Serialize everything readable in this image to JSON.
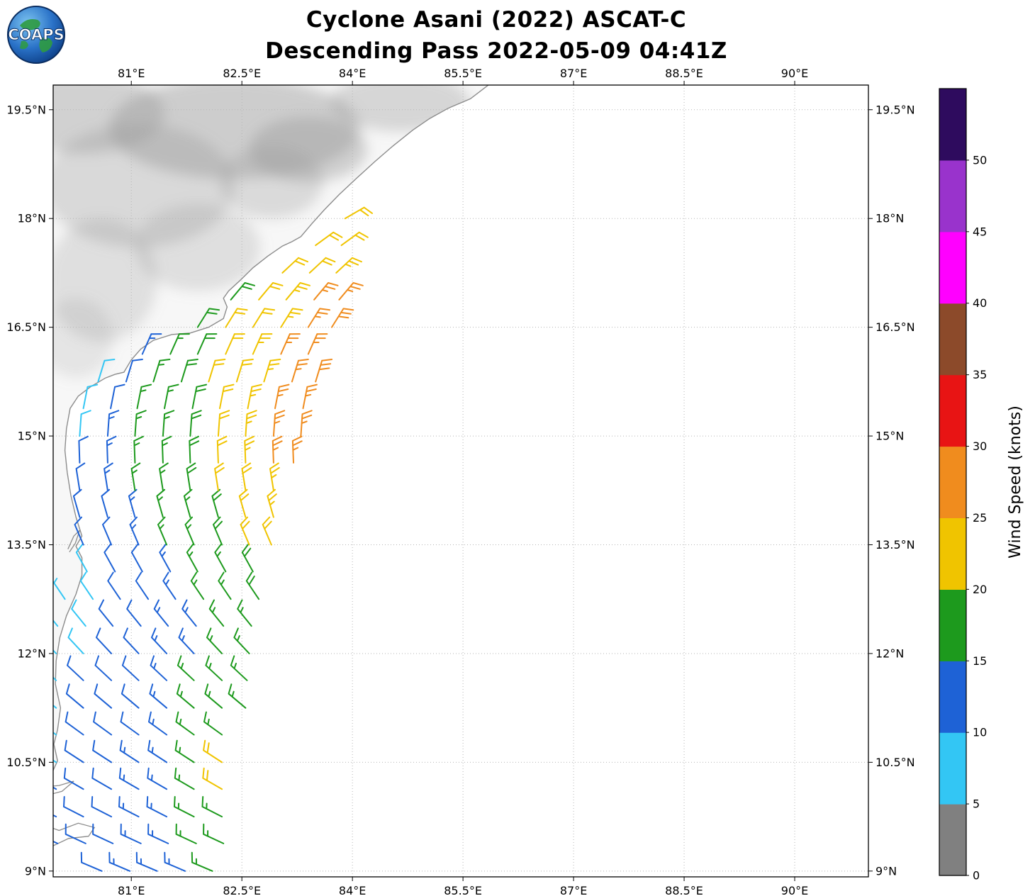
{
  "logo": {
    "text": "COAPS"
  },
  "chart_data": {
    "type": "scatter",
    "subtype": "wind_barb_map",
    "title": "Cyclone Asani (2022) ASCAT-C",
    "subtitle": "Descending Pass 2022-05-09 04:41Z",
    "grid": true,
    "projection": {
      "lon_min": 79.94,
      "lon_max": 91.0,
      "lat_min": 8.92,
      "lat_max": 19.84
    },
    "x_ticks": [
      {
        "v": 81.0,
        "label": "81°E"
      },
      {
        "v": 82.5,
        "label": "82.5°E"
      },
      {
        "v": 84.0,
        "label": "84°E"
      },
      {
        "v": 85.5,
        "label": "85.5°E"
      },
      {
        "v": 87.0,
        "label": "87°E"
      },
      {
        "v": 88.5,
        "label": "88.5°E"
      },
      {
        "v": 90.0,
        "label": "90°E"
      }
    ],
    "y_ticks": [
      {
        "v": 9.0,
        "label": "9°N"
      },
      {
        "v": 10.5,
        "label": "10.5°N"
      },
      {
        "v": 12.0,
        "label": "12°N"
      },
      {
        "v": 13.5,
        "label": "13.5°N"
      },
      {
        "v": 15.0,
        "label": "15°N"
      },
      {
        "v": 16.5,
        "label": "16.5°N"
      },
      {
        "v": 18.0,
        "label": "18°N"
      },
      {
        "v": 19.5,
        "label": "19.5°N"
      }
    ],
    "colorbar": {
      "label": "Wind Speed (knots)",
      "bin_size_knots": 5,
      "range": [
        0,
        55
      ],
      "tick_labels": [
        "0",
        "5",
        "10",
        "15",
        "20",
        "25",
        "30",
        "35",
        "40",
        "45",
        "50"
      ],
      "colors": [
        "#808080",
        "#33c6f4",
        "#1e62d6",
        "#1d9a1d",
        "#f0c400",
        "#f08c1e",
        "#e81414",
        "#8c4a2a",
        "#ff00ff",
        "#9933cc",
        "#2e0b5e"
      ]
    },
    "barb_format": [
      "lon_deg_e",
      "lat_deg_n",
      "wind_speed_knots",
      "wind_from_deg"
    ],
    "barbs": [
      [
        80.6,
        9.0,
        12,
        293
      ],
      [
        80.98,
        9.0,
        13,
        293
      ],
      [
        81.35,
        9.0,
        13,
        293
      ],
      [
        81.73,
        9.0,
        14,
        293
      ],
      [
        82.1,
        9.0,
        15,
        293
      ],
      [
        80.0,
        9.38,
        10,
        295
      ],
      [
        80.38,
        9.38,
        11,
        295
      ],
      [
        80.75,
        9.38,
        12,
        295
      ],
      [
        81.13,
        9.38,
        13,
        295
      ],
      [
        81.5,
        9.38,
        14,
        295
      ],
      [
        81.88,
        9.38,
        15,
        295
      ],
      [
        82.25,
        9.38,
        16,
        295
      ],
      [
        79.98,
        9.75,
        10,
        297
      ],
      [
        80.35,
        9.75,
        11,
        297
      ],
      [
        80.73,
        9.75,
        12,
        297
      ],
      [
        81.1,
        9.75,
        13,
        297
      ],
      [
        81.48,
        9.75,
        14,
        297
      ],
      [
        81.85,
        9.75,
        15,
        297
      ],
      [
        82.23,
        9.75,
        16,
        297
      ],
      [
        79.98,
        10.13,
        10,
        300
      ],
      [
        80.35,
        10.13,
        11,
        300
      ],
      [
        80.73,
        10.13,
        12,
        300
      ],
      [
        81.1,
        10.13,
        13,
        300
      ],
      [
        81.48,
        10.13,
        14,
        300
      ],
      [
        81.85,
        10.13,
        15,
        300
      ],
      [
        82.23,
        10.13,
        21,
        300
      ],
      [
        79.98,
        10.5,
        9,
        303
      ],
      [
        80.35,
        10.5,
        11,
        303
      ],
      [
        80.73,
        10.5,
        12,
        303
      ],
      [
        81.1,
        10.5,
        13,
        303
      ],
      [
        81.48,
        10.5,
        14,
        303
      ],
      [
        81.85,
        10.5,
        15,
        303
      ],
      [
        82.23,
        10.5,
        20,
        303
      ],
      [
        79.98,
        10.88,
        9,
        306
      ],
      [
        80.35,
        10.88,
        10,
        306
      ],
      [
        80.73,
        10.88,
        11,
        306
      ],
      [
        81.1,
        10.88,
        12,
        306
      ],
      [
        81.48,
        10.88,
        14,
        306
      ],
      [
        81.85,
        10.88,
        15,
        306
      ],
      [
        82.23,
        10.88,
        16,
        306
      ],
      [
        79.98,
        11.25,
        9,
        310
      ],
      [
        80.35,
        11.25,
        10,
        310
      ],
      [
        80.73,
        11.25,
        11,
        310
      ],
      [
        81.1,
        11.25,
        12,
        310
      ],
      [
        81.48,
        11.25,
        14,
        310
      ],
      [
        81.85,
        11.25,
        15,
        310
      ],
      [
        82.23,
        11.25,
        16,
        310
      ],
      [
        82.55,
        11.25,
        17,
        310
      ],
      [
        79.98,
        11.63,
        8,
        313
      ],
      [
        80.35,
        11.63,
        10,
        313
      ],
      [
        80.73,
        11.63,
        11,
        313
      ],
      [
        81.1,
        11.63,
        12,
        313
      ],
      [
        81.48,
        11.63,
        13,
        313
      ],
      [
        81.85,
        11.63,
        15,
        313
      ],
      [
        82.23,
        11.63,
        16,
        313
      ],
      [
        82.57,
        11.63,
        17,
        313
      ],
      [
        79.98,
        12.0,
        8,
        317
      ],
      [
        80.35,
        12.0,
        9,
        317
      ],
      [
        80.73,
        12.0,
        10,
        317
      ],
      [
        81.1,
        12.0,
        12,
        317
      ],
      [
        81.48,
        12.0,
        13,
        317
      ],
      [
        81.85,
        12.0,
        14,
        317
      ],
      [
        82.23,
        12.0,
        16,
        317
      ],
      [
        82.6,
        12.0,
        17,
        317
      ],
      [
        80.0,
        12.38,
        8,
        321
      ],
      [
        80.38,
        12.38,
        9,
        321
      ],
      [
        80.75,
        12.38,
        10,
        321
      ],
      [
        81.13,
        12.38,
        12,
        321
      ],
      [
        81.5,
        12.38,
        13,
        321
      ],
      [
        81.88,
        12.38,
        14,
        321
      ],
      [
        82.25,
        12.38,
        16,
        321
      ],
      [
        82.63,
        12.38,
        17,
        321
      ],
      [
        80.1,
        12.75,
        7,
        326
      ],
      [
        80.48,
        12.75,
        9,
        326
      ],
      [
        80.85,
        12.75,
        10,
        326
      ],
      [
        81.23,
        12.75,
        12,
        326
      ],
      [
        81.6,
        12.75,
        13,
        326
      ],
      [
        81.98,
        12.75,
        15,
        326
      ],
      [
        82.35,
        12.75,
        16,
        326
      ],
      [
        82.73,
        12.75,
        18,
        326
      ],
      [
        80.4,
        13.13,
        9,
        331
      ],
      [
        80.78,
        13.13,
        11,
        331
      ],
      [
        81.15,
        13.13,
        12,
        331
      ],
      [
        81.53,
        13.13,
        14,
        331
      ],
      [
        81.9,
        13.13,
        16,
        331
      ],
      [
        82.28,
        13.13,
        17,
        331
      ],
      [
        82.65,
        13.13,
        19,
        331
      ],
      [
        80.35,
        13.5,
        10,
        337
      ],
      [
        80.73,
        13.5,
        11,
        337
      ],
      [
        81.1,
        13.5,
        13,
        337
      ],
      [
        81.48,
        13.5,
        15,
        337
      ],
      [
        81.85,
        13.5,
        16,
        337
      ],
      [
        82.23,
        13.5,
        18,
        337
      ],
      [
        82.6,
        13.5,
        20,
        337
      ],
      [
        82.9,
        13.5,
        21,
        337
      ],
      [
        80.3,
        13.88,
        10,
        344
      ],
      [
        80.68,
        13.88,
        12,
        344
      ],
      [
        81.05,
        13.88,
        14,
        344
      ],
      [
        81.43,
        13.88,
        16,
        344
      ],
      [
        81.8,
        13.88,
        17,
        344
      ],
      [
        82.18,
        13.88,
        19,
        344
      ],
      [
        82.55,
        13.88,
        21,
        344
      ],
      [
        82.93,
        13.88,
        23,
        344
      ],
      [
        80.3,
        14.25,
        12,
        351
      ],
      [
        80.68,
        14.25,
        13,
        351
      ],
      [
        81.05,
        14.25,
        15,
        351
      ],
      [
        81.43,
        14.25,
        17,
        351
      ],
      [
        81.8,
        14.25,
        19,
        351
      ],
      [
        82.18,
        14.25,
        21,
        351
      ],
      [
        82.55,
        14.25,
        22,
        351
      ],
      [
        82.93,
        14.25,
        24,
        351
      ],
      [
        80.3,
        14.63,
        11,
        358
      ],
      [
        80.68,
        14.63,
        13,
        358
      ],
      [
        81.05,
        14.63,
        15,
        358
      ],
      [
        81.43,
        14.63,
        17,
        358
      ],
      [
        81.8,
        14.63,
        19,
        358
      ],
      [
        82.18,
        14.63,
        21,
        358
      ],
      [
        82.55,
        14.63,
        23,
        358
      ],
      [
        82.93,
        14.63,
        25,
        358
      ],
      [
        83.2,
        14.63,
        26,
        358
      ],
      [
        80.3,
        15.0,
        8,
        4
      ],
      [
        80.68,
        15.0,
        13,
        4
      ],
      [
        81.05,
        15.0,
        15,
        4
      ],
      [
        81.43,
        15.0,
        17,
        4
      ],
      [
        81.8,
        15.0,
        19,
        4
      ],
      [
        82.18,
        15.0,
        21,
        4
      ],
      [
        82.55,
        15.0,
        23,
        4
      ],
      [
        82.93,
        15.0,
        25,
        4
      ],
      [
        83.3,
        15.0,
        27,
        4
      ],
      [
        80.35,
        15.38,
        8,
        11
      ],
      [
        80.72,
        15.38,
        12,
        11
      ],
      [
        81.08,
        15.38,
        15,
        11
      ],
      [
        81.45,
        15.38,
        17,
        11
      ],
      [
        81.83,
        15.38,
        19,
        11
      ],
      [
        82.2,
        15.38,
        21,
        11
      ],
      [
        82.58,
        15.38,
        23,
        11
      ],
      [
        82.95,
        15.38,
        25,
        11
      ],
      [
        83.33,
        15.38,
        27,
        11
      ],
      [
        80.55,
        15.75,
        8,
        17
      ],
      [
        80.93,
        15.75,
        12,
        17
      ],
      [
        81.3,
        15.75,
        16,
        17
      ],
      [
        81.68,
        15.75,
        18,
        17
      ],
      [
        82.05,
        15.75,
        20,
        17
      ],
      [
        82.43,
        15.75,
        22,
        17
      ],
      [
        82.8,
        15.75,
        24,
        17
      ],
      [
        83.18,
        15.75,
        26,
        17
      ],
      [
        83.5,
        15.75,
        28,
        17
      ],
      [
        81.15,
        16.13,
        14,
        24
      ],
      [
        81.53,
        16.13,
        16,
        24
      ],
      [
        81.9,
        16.13,
        19,
        24
      ],
      [
        82.28,
        16.13,
        21,
        24
      ],
      [
        82.65,
        16.13,
        23,
        24
      ],
      [
        83.03,
        16.13,
        25,
        24
      ],
      [
        83.4,
        16.13,
        27,
        24
      ],
      [
        81.9,
        16.5,
        18,
        32
      ],
      [
        82.28,
        16.5,
        20,
        32
      ],
      [
        82.65,
        16.5,
        22,
        32
      ],
      [
        83.03,
        16.5,
        24,
        32
      ],
      [
        83.4,
        16.5,
        26,
        32
      ],
      [
        83.72,
        16.5,
        28,
        32
      ],
      [
        82.35,
        16.88,
        19,
        40
      ],
      [
        82.73,
        16.88,
        21,
        40
      ],
      [
        83.1,
        16.88,
        23,
        40
      ],
      [
        83.48,
        16.88,
        25,
        40
      ],
      [
        83.82,
        16.88,
        27,
        40
      ],
      [
        83.05,
        17.25,
        20,
        47
      ],
      [
        83.42,
        17.25,
        22,
        47
      ],
      [
        83.78,
        17.25,
        24,
        47
      ],
      [
        83.5,
        17.63,
        20,
        54
      ],
      [
        83.85,
        17.63,
        22,
        54
      ],
      [
        83.9,
        18.0,
        22,
        60
      ]
    ],
    "coastline": [
      [
        85.92,
        19.9
      ],
      [
        85.6,
        19.65
      ],
      [
        85.3,
        19.52
      ],
      [
        85.05,
        19.38
      ],
      [
        84.82,
        19.22
      ],
      [
        84.55,
        19.0
      ],
      [
        84.3,
        18.78
      ],
      [
        84.05,
        18.55
      ],
      [
        83.82,
        18.33
      ],
      [
        83.62,
        18.12
      ],
      [
        83.45,
        17.93
      ],
      [
        83.3,
        17.75
      ],
      [
        83.18,
        17.68
      ],
      [
        83.05,
        17.62
      ],
      [
        82.85,
        17.48
      ],
      [
        82.65,
        17.32
      ],
      [
        82.48,
        17.15
      ],
      [
        82.32,
        17.0
      ],
      [
        82.25,
        16.9
      ],
      [
        82.3,
        16.78
      ],
      [
        82.25,
        16.62
      ],
      [
        82.05,
        16.5
      ],
      [
        81.8,
        16.42
      ],
      [
        81.55,
        16.4
      ],
      [
        81.3,
        16.32
      ],
      [
        81.13,
        16.2
      ],
      [
        81.0,
        16.05
      ],
      [
        80.9,
        15.88
      ],
      [
        80.78,
        15.85
      ],
      [
        80.65,
        15.8
      ],
      [
        80.45,
        15.68
      ],
      [
        80.28,
        15.55
      ],
      [
        80.17,
        15.38
      ],
      [
        80.12,
        15.1
      ],
      [
        80.1,
        14.8
      ],
      [
        80.13,
        14.5
      ],
      [
        80.18,
        14.18
      ],
      [
        80.25,
        13.88
      ],
      [
        80.33,
        13.62
      ],
      [
        80.25,
        13.48
      ],
      [
        80.33,
        13.32
      ],
      [
        80.33,
        13.08
      ],
      [
        80.25,
        12.82
      ],
      [
        80.12,
        12.52
      ],
      [
        80.03,
        12.22
      ],
      [
        79.98,
        11.9
      ],
      [
        79.97,
        11.58
      ],
      [
        80.04,
        11.25
      ],
      [
        80.0,
        10.95
      ],
      [
        79.95,
        10.75
      ],
      [
        80.0,
        10.52
      ],
      [
        79.9,
        10.3
      ]
    ],
    "land_close": [
      [
        79.7,
        10.3
      ],
      [
        79.7,
        19.95
      ],
      [
        85.92,
        19.95
      ]
    ],
    "islands": [
      [
        [
          79.8,
          9.64
        ],
        [
          80.02,
          9.56
        ],
        [
          80.28,
          9.66
        ],
        [
          80.5,
          9.6
        ],
        [
          80.42,
          9.48
        ],
        [
          80.15,
          9.45
        ],
        [
          79.88,
          9.32
        ],
        [
          79.8,
          9.36
        ]
      ],
      [
        [
          79.8,
          10.16
        ],
        [
          80.02,
          10.18
        ],
        [
          80.22,
          10.24
        ],
        [
          80.06,
          10.1
        ],
        [
          79.84,
          10.04
        ]
      ],
      [
        [
          80.14,
          13.44
        ],
        [
          80.22,
          13.62
        ],
        [
          80.3,
          13.7
        ],
        [
          80.24,
          13.52
        ],
        [
          80.16,
          13.4
        ]
      ]
    ],
    "terrain_shading": [
      {
        "lon": 82.4,
        "lat": 19.25,
        "rx": 1.7,
        "ry": 0.7,
        "opacity": 0.45
      },
      {
        "lon": 81.1,
        "lat": 18.45,
        "rx": 1.3,
        "ry": 0.85,
        "opacity": 0.32
      },
      {
        "lon": 83.4,
        "lat": 18.95,
        "rx": 0.8,
        "ry": 0.45,
        "opacity": 0.42
      },
      {
        "lon": 80.35,
        "lat": 19.45,
        "rx": 1.1,
        "ry": 0.55,
        "opacity": 0.4
      },
      {
        "lon": 84.65,
        "lat": 19.6,
        "rx": 0.95,
        "ry": 0.4,
        "opacity": 0.35
      },
      {
        "lon": 82.9,
        "lat": 18.5,
        "rx": 0.7,
        "ry": 0.5,
        "opacity": 0.3
      },
      {
        "lon": 80.6,
        "lat": 17.15,
        "rx": 0.75,
        "ry": 0.85,
        "opacity": 0.25
      },
      {
        "lon": 81.9,
        "lat": 17.6,
        "rx": 0.85,
        "ry": 0.6,
        "opacity": 0.25
      },
      {
        "lon": 80.25,
        "lat": 16.35,
        "rx": 0.5,
        "ry": 0.55,
        "opacity": 0.2
      }
    ]
  }
}
